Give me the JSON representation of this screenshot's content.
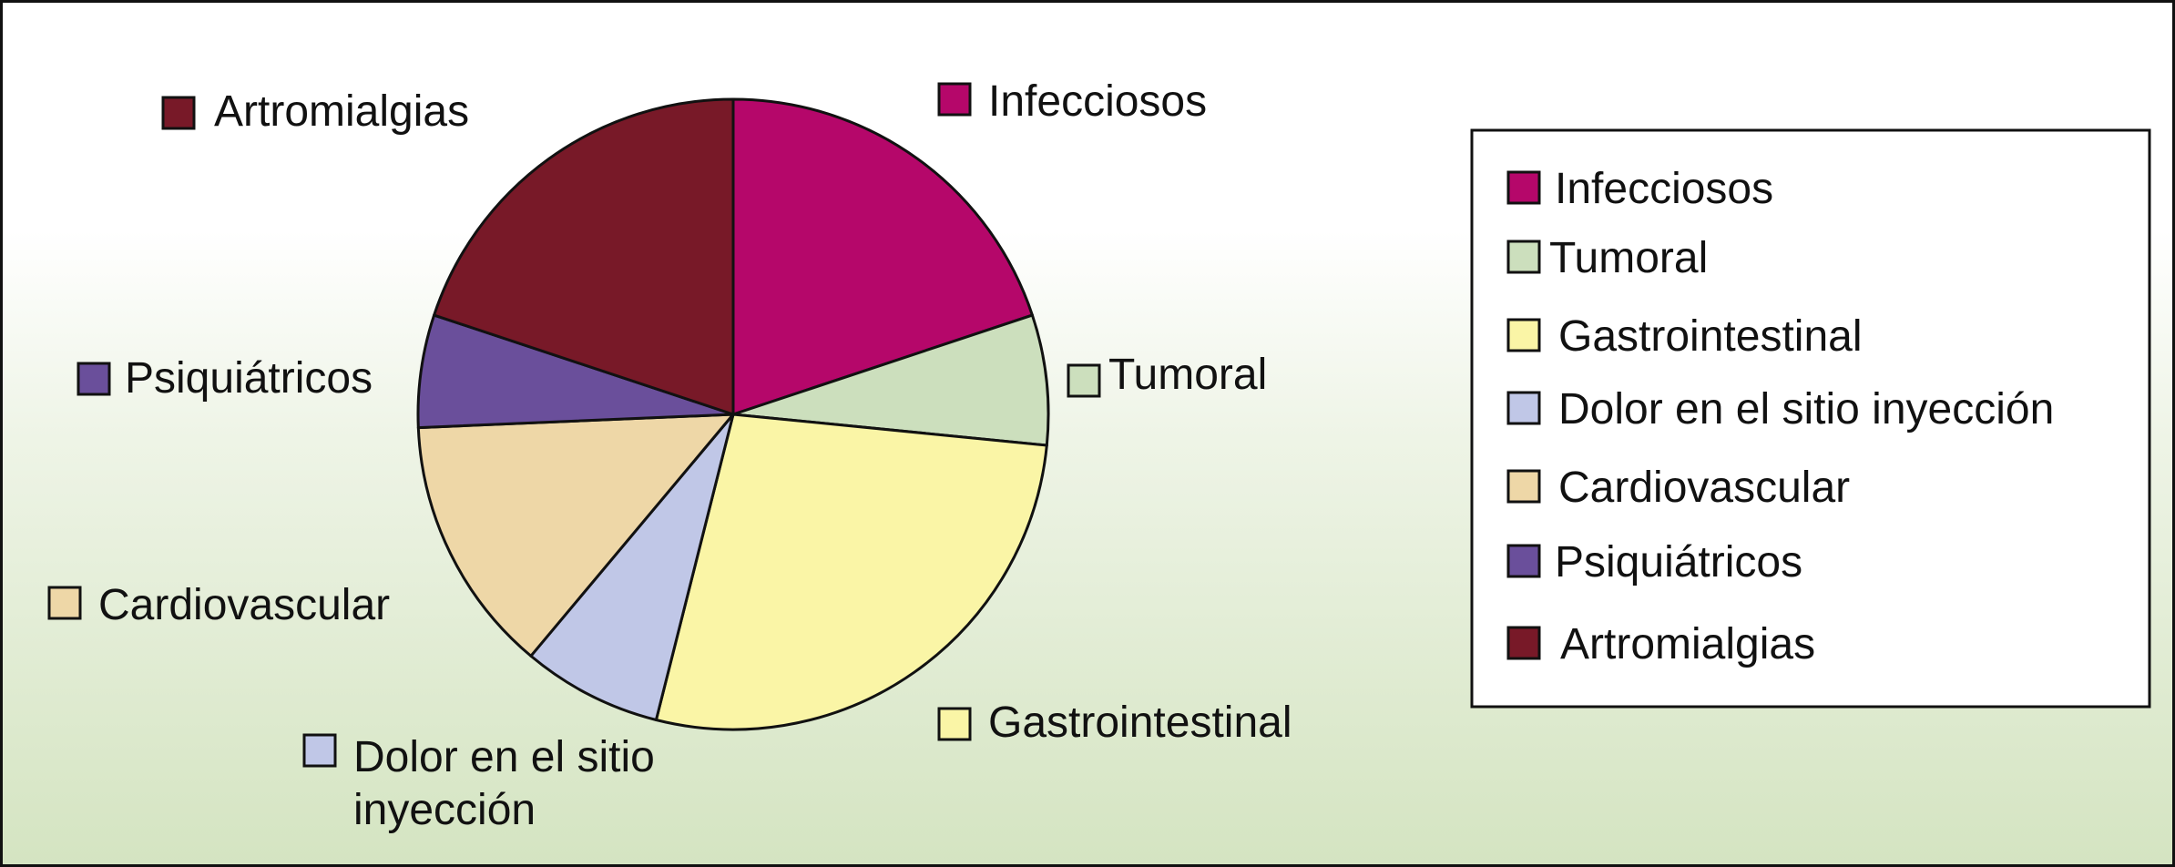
{
  "chart_data": {
    "type": "pie",
    "title": "",
    "legend_placement": "right",
    "categories": [
      "Infecciosos",
      "Tumoral",
      "Gastrointestinal",
      "Dolor en el sitio inyección",
      "Cardiovascular",
      "Psiquiátricos",
      "Artromialgias"
    ],
    "values": [
      20,
      6.7,
      27.5,
      7.2,
      13.3,
      5.8,
      20
    ],
    "unit": "%",
    "colors": [
      "#b5076a",
      "#ccdfbd",
      "#faf5a6",
      "#c0c7e7",
      "#eed7a7",
      "#6a4f9b",
      "#781928"
    ],
    "slice_labels": [
      [
        "Infecciosos"
      ],
      [
        "Tumoral"
      ],
      [
        "Gastrointestinal"
      ],
      [
        "Dolor en el sitio",
        "inyección"
      ],
      [
        "Cardiovascular"
      ],
      [
        "Psiquiátricos"
      ],
      [
        "Artromialgias"
      ]
    ]
  }
}
